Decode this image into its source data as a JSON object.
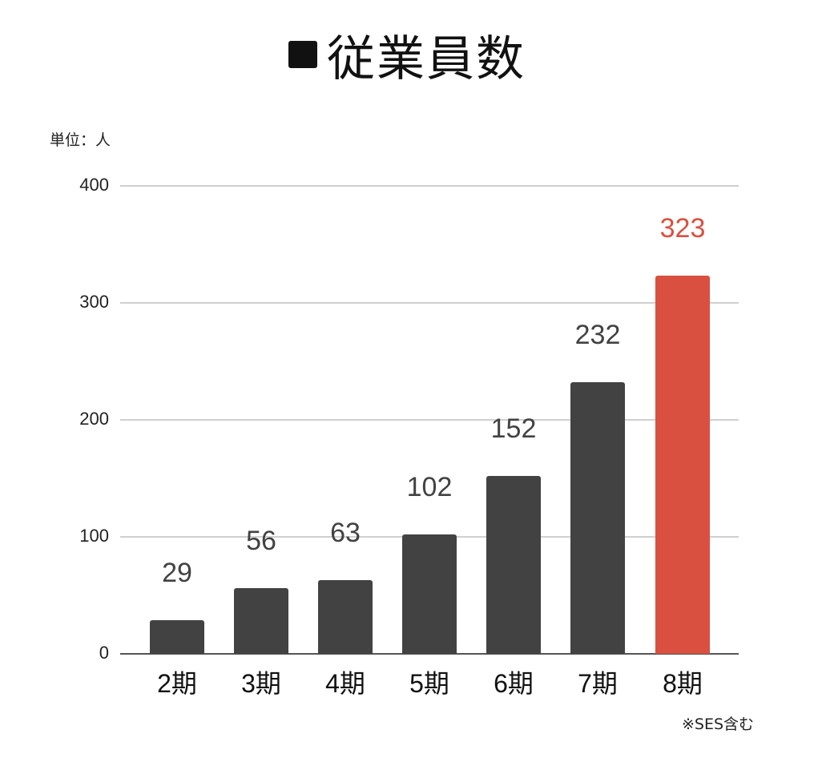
{
  "title": "従業員数",
  "title_marker": "■",
  "unit_label": "単位：人",
  "footnote": "※SES含む",
  "colors": {
    "bar_default": "#424242",
    "bar_highlight": "#d95040",
    "label_default": "#424242",
    "label_highlight": "#d95040",
    "grid": "#cfcfcf"
  },
  "y_ticks": [
    "0",
    "100",
    "200",
    "300",
    "400"
  ],
  "bars": [
    {
      "category": "2期",
      "value": 29,
      "label": "29",
      "highlight": false
    },
    {
      "category": "3期",
      "value": 56,
      "label": "56",
      "highlight": false
    },
    {
      "category": "4期",
      "value": 63,
      "label": "63",
      "highlight": false
    },
    {
      "category": "5期",
      "value": 102,
      "label": "102",
      "highlight": false
    },
    {
      "category": "6期",
      "value": 152,
      "label": "152",
      "highlight": false
    },
    {
      "category": "7期",
      "value": 232,
      "label": "232",
      "highlight": false
    },
    {
      "category": "8期",
      "value": 323,
      "label": "323",
      "highlight": true
    }
  ],
  "chart_data": {
    "type": "bar",
    "title": "■従業員数",
    "categories": [
      "2期",
      "3期",
      "4期",
      "5期",
      "6期",
      "7期",
      "8期"
    ],
    "values": [
      29,
      56,
      63,
      102,
      152,
      232,
      323
    ],
    "xlabel": "",
    "ylabel": "単位：人",
    "ylim": [
      0,
      400
    ],
    "yticks": [
      0,
      100,
      200,
      300,
      400
    ],
    "grid": true,
    "legend": null,
    "data_labels": true,
    "highlight": {
      "category": "8期",
      "color": "#d95040"
    },
    "annotations": [
      "※SES含む"
    ]
  }
}
